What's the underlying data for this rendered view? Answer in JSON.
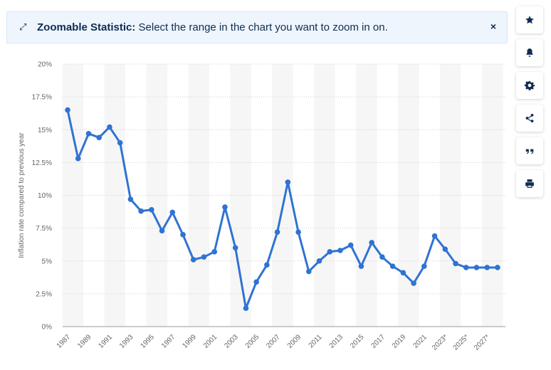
{
  "banner": {
    "title": "Zoomable Statistic:",
    "text": " Select the range in the chart you want to zoom in on.",
    "close": "×"
  },
  "toolbar": {
    "items": [
      "star-icon",
      "bell-icon",
      "gear-icon",
      "share-icon",
      "quote-icon",
      "print-icon"
    ]
  },
  "colors": {
    "line": "#2f73d3",
    "band": "#f6f6f6",
    "grid": "#cfcfcf"
  },
  "chart_data": {
    "type": "line",
    "title": "",
    "xlabel": "",
    "ylabel": "Inflation rate compared to previous year",
    "ylim": [
      0,
      20
    ],
    "y_ticks": [
      "0%",
      "2.5%",
      "5%",
      "7.5%",
      "10%",
      "12.5%",
      "15%",
      "17.5%",
      "20%"
    ],
    "grid": true,
    "x": [
      "1987",
      "1988",
      "1989",
      "1990",
      "1991",
      "1992",
      "1993",
      "1994",
      "1995",
      "1996",
      "1997",
      "1998",
      "1999",
      "2000",
      "2001",
      "2002",
      "2003",
      "2004",
      "2005",
      "2006",
      "2007",
      "2008",
      "2009",
      "2010",
      "2011",
      "2012",
      "2013",
      "2014",
      "2015",
      "2016",
      "2017",
      "2018",
      "2019",
      "2020",
      "2021",
      "2022",
      "2023*",
      "2024*",
      "2025*",
      "2026*",
      "2027*",
      "2028*"
    ],
    "x_tick_labels": [
      "1987",
      "1989",
      "1991",
      "1993",
      "1995",
      "1997",
      "1999",
      "2001",
      "2003",
      "2005",
      "2007",
      "2009",
      "2011",
      "2013",
      "2015",
      "2017",
      "2019",
      "2021",
      "2023*",
      "2025*",
      "2027*"
    ],
    "series": [
      {
        "values": [
          16.5,
          12.8,
          14.7,
          14.4,
          15.2,
          14.0,
          9.7,
          8.8,
          8.9,
          7.3,
          8.7,
          7.0,
          5.1,
          5.3,
          5.7,
          9.1,
          6.0,
          1.4,
          3.4,
          4.7,
          7.2,
          11.0,
          7.2,
          4.2,
          5.0,
          5.7,
          5.8,
          6.2,
          4.6,
          6.4,
          5.3,
          4.6,
          4.1,
          3.3,
          4.6,
          6.9,
          5.9,
          4.8,
          4.5,
          4.5,
          4.5,
          4.5
        ]
      }
    ]
  }
}
